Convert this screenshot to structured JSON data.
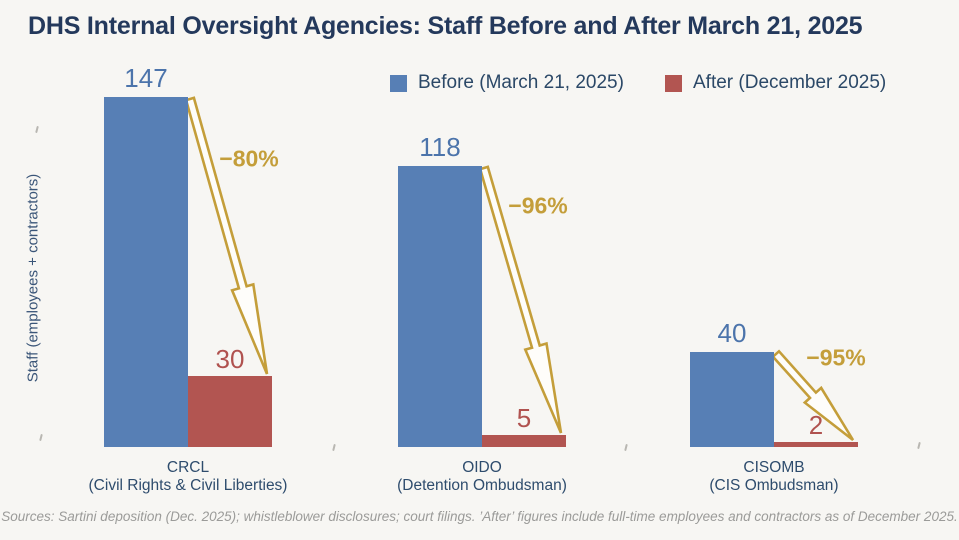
{
  "title": "DHS Internal Oversight Agencies: Staff Before and After March 21, 2025",
  "footer": "Sources: Sartini deposition (Dec. 2025); whistleblower disclosures; court filings. ’After’ figures include full-time employees and contractors as of December 2025.",
  "colors": {
    "background": "#F7F6F3",
    "title_navy": "#24395C",
    "before_blue": "#577FB5",
    "after_red": "#B25551",
    "value_blue": "#4C74AB",
    "value_red": "#B0524F",
    "accent_gold": "#C49E3A",
    "arrow_fill": "#FEFDFA"
  },
  "chart_data": {
    "type": "bar",
    "title": "DHS Internal Oversight Agencies: Staff Before and After March 21, 2025",
    "xlabel": "",
    "ylabel": "Staff (employees + contractors)",
    "ylim": [
      0,
      150
    ],
    "grid": false,
    "legend_position": "top",
    "categories": [
      {
        "code": "CRCL",
        "sub": "(Civil Rights & Civil Liberties)"
      },
      {
        "code": "OIDO",
        "sub": "(Detention Ombudsman)"
      },
      {
        "code": "CISOMB",
        "sub": "(CIS Ombudsman)"
      }
    ],
    "series": [
      {
        "name": "Before (March 21, 2025)",
        "color": "#577FB5",
        "values": [
          147,
          118,
          40
        ]
      },
      {
        "name": "After (December 2025)",
        "color": "#B25551",
        "values": [
          30,
          5,
          2
        ]
      }
    ],
    "annotations": [
      {
        "category": "CRCL",
        "label": "−80%"
      },
      {
        "category": "OIDO",
        "label": "−96%"
      },
      {
        "category": "CISOMB",
        "label": "−95%"
      }
    ]
  }
}
